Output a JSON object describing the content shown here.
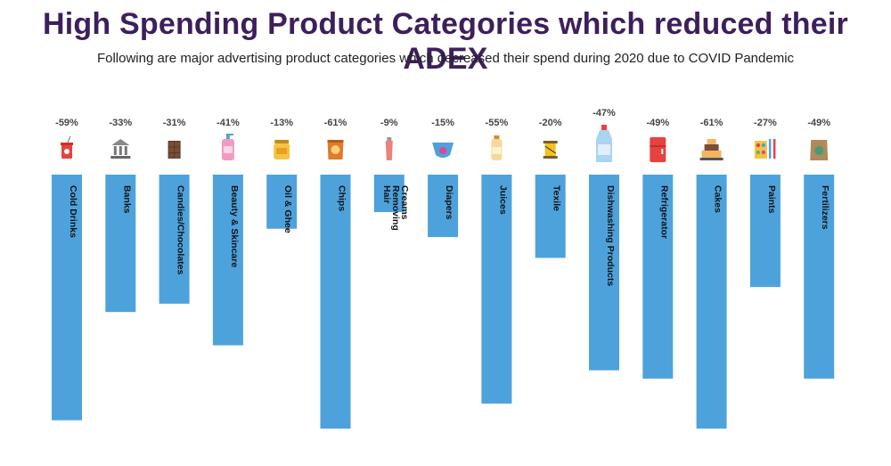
{
  "title": "High Spending Product Categories which reduced their ADEX",
  "subtitle": "Following are major advertising product categories which decreased their spend during 2020 due to COVID Pandemic",
  "colors": {
    "bar": "#4ea2dc",
    "title": "#3d1f5c"
  },
  "chart_data": {
    "type": "bar",
    "categories": [
      "Cold Drinks",
      "Banks",
      "Candies/Chocolates",
      "Beauty & Skincare",
      "Oil & Ghee",
      "Chips",
      "Hair Removing Creams",
      "Diapers",
      "Juices",
      "Texile",
      "Dishwashing Products",
      "Refrigerator",
      "Cakes",
      "Paints",
      "Fertilizers"
    ],
    "values": [
      -59,
      -33,
      -31,
      -41,
      -13,
      -61,
      -9,
      -15,
      -55,
      -20,
      -47,
      -49,
      -61,
      -27,
      -49
    ],
    "labels": [
      "-59%",
      "-33%",
      "-31%",
      "-41%",
      "-13%",
      "-61%",
      "-9%",
      "-15%",
      "-55%",
      "-20%",
      "-47%",
      "-49%",
      "-61%",
      "-27%",
      "-49%"
    ],
    "icons": [
      "soda-cup-icon",
      "bank-icon",
      "chocolate-icon",
      "lotion-bottle-icon",
      "oil-jar-icon",
      "chips-bag-icon",
      "cream-tube-icon",
      "diaper-icon",
      "juice-bottle-icon",
      "thread-spool-icon",
      "dish-soap-icon",
      "refrigerator-icon",
      "cake-icon",
      "paint-palette-icon",
      "fertilizer-bag-icon"
    ],
    "ylim": [
      -61,
      0
    ],
    "grid": false,
    "legend": "none",
    "xlabel": "",
    "ylabel": ""
  }
}
